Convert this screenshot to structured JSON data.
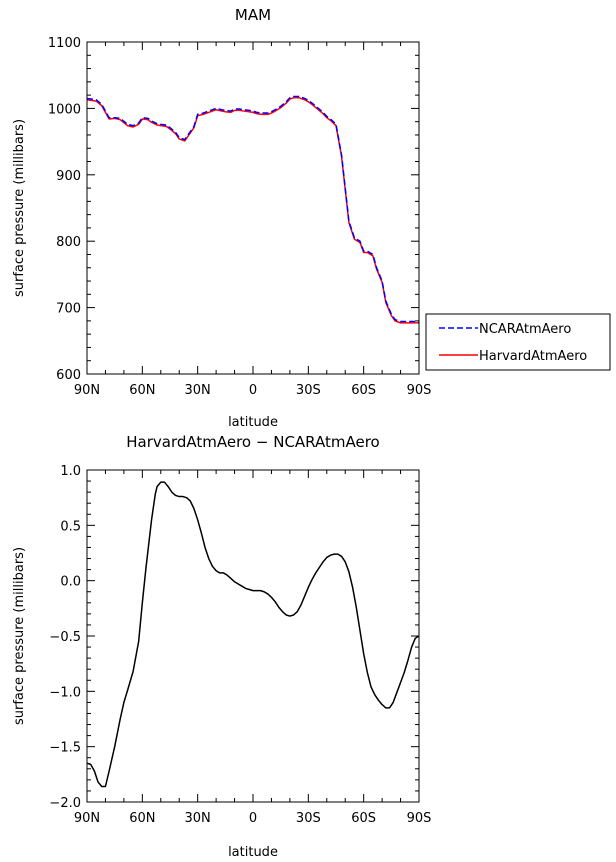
{
  "chart_data": [
    {
      "type": "line",
      "title": "MAM",
      "xlabel": "latitude",
      "ylabel": "surface pressure (millibars)",
      "xlim": [
        90,
        -90
      ],
      "ylim": [
        600,
        1100
      ],
      "xticks": [
        90,
        60,
        30,
        0,
        -30,
        -60,
        -90
      ],
      "xtick_labels": [
        "90N",
        "60N",
        "30N",
        "0",
        "30S",
        "60S",
        "90S"
      ],
      "yticks": [
        600,
        700,
        800,
        900,
        1000,
        1100
      ],
      "ytick_labels": [
        "600",
        "700",
        "800",
        "900",
        "1000",
        "1100"
      ],
      "legend": "right",
      "x": [
        90,
        85,
        82,
        78,
        75,
        72,
        68,
        65,
        62,
        60,
        57,
        55,
        52,
        50,
        47,
        45,
        42,
        40,
        37,
        35,
        32,
        30,
        27,
        25,
        22,
        20,
        17,
        15,
        12,
        10,
        7,
        5,
        2,
        0,
        -2,
        -5,
        -8,
        -10,
        -12,
        -15,
        -18,
        -20,
        -22,
        -25,
        -28,
        -30,
        -32,
        -35,
        -38,
        -40,
        -42,
        -45,
        -48,
        -50,
        -52,
        -55,
        -58,
        -60,
        -62,
        -65,
        -67,
        -70,
        -72,
        -75,
        -77,
        -80,
        -82,
        -85,
        -88,
        -90
      ],
      "series": [
        {
          "name": "NCARAtmAero",
          "color": "#0000ff",
          "style": "dashed",
          "values": [
            1015,
            1013,
            1006,
            986,
            986,
            985,
            976,
            974,
            978,
            986,
            985,
            981,
            977,
            976,
            975,
            971,
            964,
            956,
            953,
            961,
            973,
            991,
            993,
            995,
            998,
            1000,
            998,
            997,
            996,
            999,
            999,
            998,
            997,
            996,
            994,
            993,
            993,
            995,
            998,
            1003,
            1010,
            1016,
            1018,
            1018,
            1015,
            1012,
            1008,
            1001,
            994,
            988,
            984,
            976,
            930,
            880,
            830,
            805,
            800,
            785,
            785,
            780,
            760,
            740,
            710,
            690,
            682,
            679,
            679,
            679,
            679,
            679
          ]
        },
        {
          "name": "HarvardAtmAero",
          "color": "#ff0000",
          "style": "solid",
          "values": [
            1013,
            1011,
            1004,
            984,
            985,
            983,
            974,
            972,
            976,
            984,
            983,
            979,
            975,
            974,
            973,
            969,
            962,
            954,
            951,
            959,
            971,
            989,
            991,
            993,
            996,
            998,
            996,
            995,
            994,
            997,
            997,
            996,
            995,
            994,
            992,
            991,
            991,
            993,
            996,
            1001,
            1008,
            1014,
            1016,
            1016,
            1013,
            1010,
            1006,
            999,
            992,
            986,
            982,
            974,
            928,
            878,
            828,
            803,
            798,
            783,
            783,
            778,
            758,
            738,
            708,
            688,
            680,
            677,
            677,
            677,
            677,
            677
          ]
        }
      ]
    },
    {
      "type": "line",
      "title": "HarvardAtmAero − NCARAtmAero",
      "xlabel": "latitude",
      "ylabel": "surface pressure (millibars)",
      "xlim": [
        90,
        -90
      ],
      "ylim": [
        -2.0,
        1.0
      ],
      "xticks": [
        90,
        60,
        30,
        0,
        -30,
        -60,
        -90
      ],
      "xtick_labels": [
        "90N",
        "60N",
        "30N",
        "0",
        "30S",
        "60S",
        "90S"
      ],
      "yticks": [
        -2.0,
        -1.5,
        -1.0,
        -0.5,
        0.0,
        0.5,
        1.0
      ],
      "ytick_labels": [
        "−2.0",
        "−1.5",
        "−1.0",
        "−0.5",
        "0.0",
        "0.5",
        "1.0"
      ],
      "x": [
        90,
        88,
        86,
        84,
        82,
        80,
        78,
        75,
        72,
        70,
        68,
        65,
        62,
        60,
        58,
        55,
        53,
        52,
        50,
        48,
        46,
        44,
        42,
        40,
        38,
        36,
        34,
        32,
        30,
        28,
        26,
        24,
        22,
        20,
        18,
        16,
        14,
        12,
        10,
        8,
        6,
        4,
        2,
        0,
        -2,
        -4,
        -6,
        -8,
        -10,
        -12,
        -14,
        -16,
        -18,
        -20,
        -22,
        -24,
        -26,
        -28,
        -30,
        -32,
        -34,
        -36,
        -38,
        -40,
        -42,
        -44,
        -46,
        -48,
        -50,
        -52,
        -54,
        -56,
        -58,
        -60,
        -62,
        -64,
        -66,
        -68,
        -70,
        -72,
        -74,
        -76,
        -78,
        -80,
        -82,
        -84,
        -86,
        -88,
        -90
      ],
      "series": [
        {
          "color": "#000000",
          "style": "solid",
          "values": [
            -1.65,
            -1.66,
            -1.72,
            -1.82,
            -1.86,
            -1.86,
            -1.72,
            -1.5,
            -1.25,
            -1.1,
            -0.99,
            -0.82,
            -0.55,
            -0.2,
            0.12,
            0.55,
            0.78,
            0.85,
            0.89,
            0.89,
            0.85,
            0.8,
            0.77,
            0.76,
            0.76,
            0.75,
            0.72,
            0.65,
            0.55,
            0.43,
            0.3,
            0.2,
            0.13,
            0.09,
            0.07,
            0.07,
            0.05,
            0.02,
            -0.01,
            -0.03,
            -0.05,
            -0.07,
            -0.08,
            -0.09,
            -0.09,
            -0.09,
            -0.1,
            -0.12,
            -0.15,
            -0.19,
            -0.24,
            -0.28,
            -0.31,
            -0.32,
            -0.31,
            -0.28,
            -0.22,
            -0.14,
            -0.06,
            0.01,
            0.07,
            0.12,
            0.17,
            0.21,
            0.23,
            0.24,
            0.24,
            0.22,
            0.17,
            0.08,
            -0.06,
            -0.24,
            -0.45,
            -0.66,
            -0.83,
            -0.96,
            -1.03,
            -1.08,
            -1.12,
            -1.15,
            -1.15,
            -1.1,
            -1.01,
            -0.92,
            -0.83,
            -0.72,
            -0.6,
            -0.52,
            -0.5
          ]
        }
      ]
    }
  ]
}
